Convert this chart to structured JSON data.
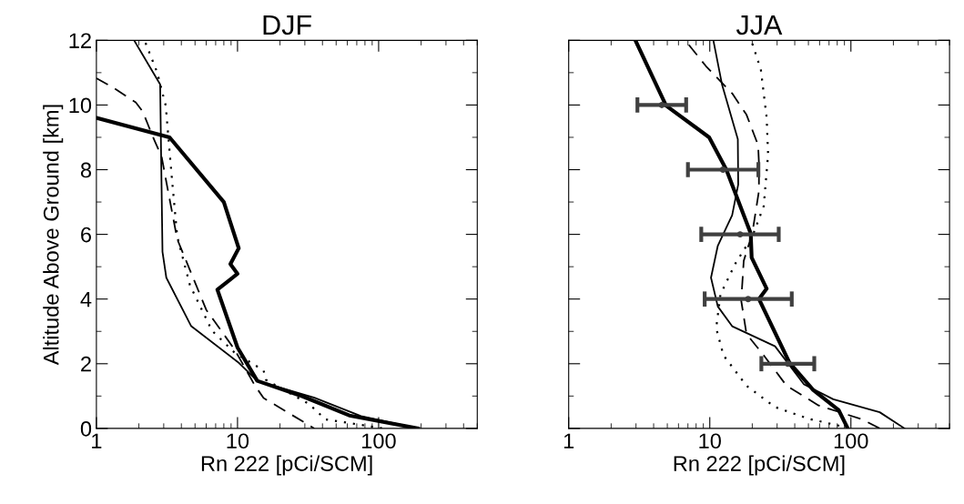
{
  "chart_data": [
    {
      "type": "line",
      "title": "DJF",
      "xlabel": "Rn 222 [pCi/SCM]",
      "ylabel": "Altitude Above Ground [km]",
      "log": "x",
      "xlim": [
        1,
        500
      ],
      "xticks": [
        1,
        10,
        100
      ],
      "ylim": [
        0,
        12
      ],
      "yticks": [
        0,
        2,
        4,
        6,
        8,
        10,
        12
      ],
      "grid": false,
      "legend": false,
      "marker": "none",
      "series": [
        {
          "color": "#000000",
          "line_style": "solid",
          "x": [
            1.0,
            3.3,
            8.0,
            10.2,
            8.9,
            10.0,
            7.2,
            10.0,
            13.8,
            29,
            62,
            190
          ],
          "values": [
            9.6,
            9.0,
            7.0,
            5.57,
            5.08,
            4.78,
            4.29,
            2.5,
            1.47,
            0.99,
            0.4,
            0
          ]
        },
        {
          "color": "#000000",
          "line_style": "solid",
          "x": [
            1.85,
            2.83,
            2.87,
            2.94,
            3.13,
            4.7,
            10.2,
            13.8,
            35,
            75,
            190
          ],
          "values": [
            12,
            10.64,
            8.67,
            5.46,
            4.66,
            3.16,
            2.03,
            1.47,
            0.95,
            0.38,
            0
          ]
        },
        {
          "color": "#000000",
          "line_style": "dashed",
          "x": [
            1.0,
            1.3,
            1.9,
            2.13,
            2.5,
            2.9,
            3.1,
            3.74,
            6.0,
            9.5,
            13.3,
            15.3,
            35
          ],
          "values": [
            10.83,
            10.55,
            10.08,
            9.8,
            9.04,
            8.4,
            7.72,
            5.85,
            3.67,
            2.45,
            1.32,
            0.94,
            0
          ]
        },
        {
          "color": "#000000",
          "line_style": "dotted",
          "x": [
            2.23,
            2.7,
            3.1,
            3.4,
            3.74,
            4.6,
            6.6,
            9.5,
            15.3,
            15.9,
            32,
            42,
            108
          ],
          "values": [
            11.92,
            11.0,
            9.98,
            7.9,
            5.93,
            4.43,
            3.02,
            2.35,
            1.79,
            1.5,
            0.76,
            0.28,
            0
          ]
        }
      ]
    },
    {
      "type": "line",
      "title": "JJA",
      "xlabel": "Rn 222 [pCi/SCM]",
      "log": "x",
      "xlim": [
        1,
        500
      ],
      "xticks": [
        1,
        10,
        100
      ],
      "ylim": [
        0,
        12
      ],
      "yticks": [
        0,
        2,
        4,
        6,
        8,
        10,
        12
      ],
      "tick_labels": "x",
      "grid": false,
      "legend": false,
      "marker": "none",
      "series": [
        {
          "color": "#000000",
          "line_style": "solid",
          "x": [
            2.97,
            4.9,
            9.9,
            13.1,
            19.5,
            19.8,
            25.3,
            22.3,
            36.7,
            54,
            82,
            95
          ],
          "values": [
            12,
            9.98,
            9.0,
            8.0,
            6.03,
            5.28,
            4.32,
            4.0,
            2.03,
            1.19,
            0.56,
            0
          ]
        },
        {
          "color": "#000000",
          "line_style": "solid",
          "x": [
            10.6,
            12.2,
            15.8,
            15.9,
            14.4,
            11.4,
            10.2,
            11.4,
            14.4,
            29,
            46.5,
            75,
            160,
            240
          ],
          "values": [
            12,
            10.64,
            8.94,
            7.54,
            6.59,
            5.65,
            4.66,
            3.77,
            3.16,
            2.54,
            1.36,
            0.9,
            0.5,
            0
          ]
        },
        {
          "color": "#000000",
          "line_style": "dashed",
          "x": [
            7.1,
            9.4,
            14.4,
            18.2,
            22,
            22.3,
            22.3,
            20,
            17.4,
            16.7,
            18.2,
            24.1,
            35,
            59,
            120,
            160
          ],
          "values": [
            11.86,
            11.2,
            10.36,
            9.7,
            8.76,
            8.2,
            7.34,
            6.03,
            5.18,
            3.95,
            2.92,
            2.26,
            1.32,
            0.71,
            0.28,
            0
          ]
        },
        {
          "color": "#000000",
          "line_style": "dotted",
          "x": [
            20,
            23,
            25.3,
            25.9,
            24.1,
            20,
            15.1,
            11.9,
            11.1,
            12.5,
            18.2,
            29,
            50,
            100
          ],
          "values": [
            11.9,
            11.1,
            9.6,
            8.47,
            6.87,
            5.93,
            5.08,
            4.14,
            3.1,
            2.26,
            1.32,
            0.66,
            0.3,
            0
          ]
        },
        {
          "type": "scatter",
          "color": "#404040",
          "marker": "circle",
          "x": [
            4.57,
            12.4,
            16.4,
            18.7,
            35.7
          ],
          "values": [
            10,
            8,
            6,
            4,
            2
          ],
          "xerrors": [
            [
              3.07,
              6.8
            ],
            [
              7.0,
              22.1
            ],
            [
              8.7,
              30.8
            ],
            [
              9.2,
              38.1
            ],
            [
              23.2,
              55
            ]
          ]
        }
      ]
    }
  ]
}
